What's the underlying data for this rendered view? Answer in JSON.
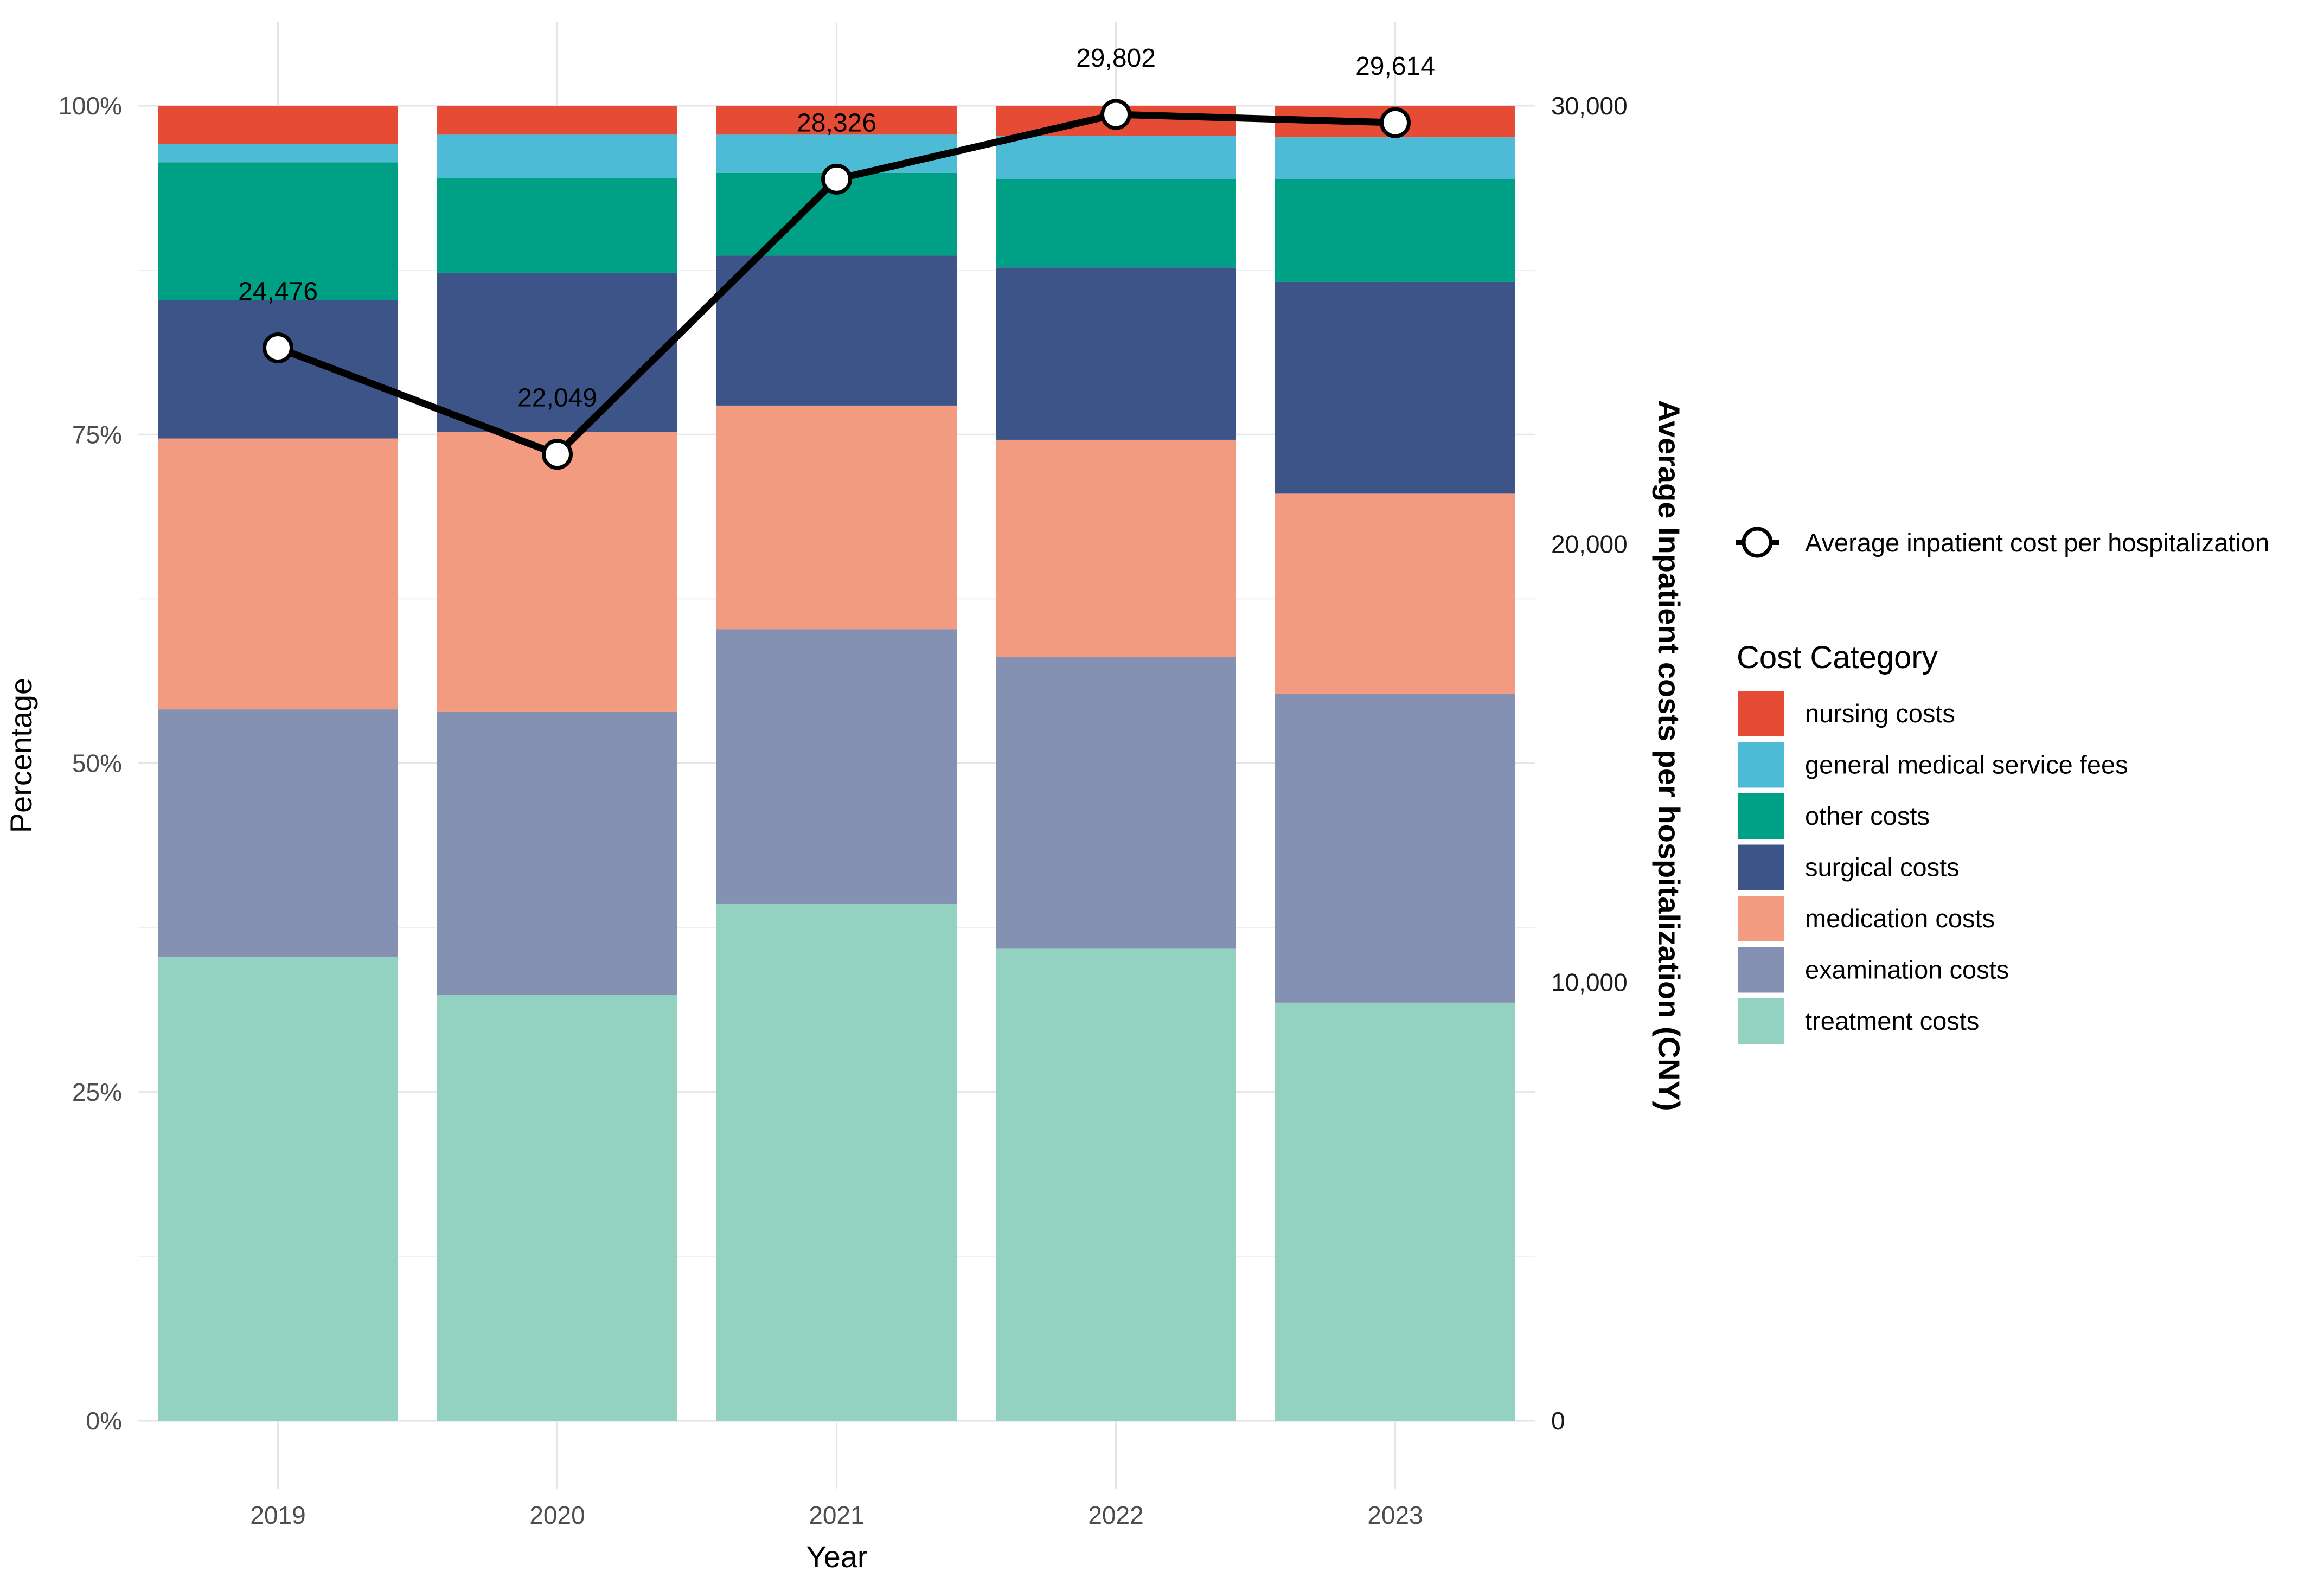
{
  "chart_data": {
    "type": "bar",
    "stacked": true,
    "categories": [
      "2019",
      "2020",
      "2021",
      "2022",
      "2023"
    ],
    "xlabel": "Year",
    "ylabel": "Percentage",
    "ylim": [
      0,
      1
    ],
    "y_ticks": [
      "0%",
      "25%",
      "50%",
      "75%",
      "100%"
    ],
    "y2label": "Average Inpatient costs per hospitalization (CNY)",
    "y2lim": [
      0,
      30000
    ],
    "y2_ticks": [
      "0",
      "10,000",
      "20,000",
      "30,000"
    ],
    "grid": true,
    "series": [
      {
        "name": "treatment costs",
        "color": "#93D1C0",
        "values": [
          35.3,
          32.4,
          39.3,
          35.9,
          31.8
        ]
      },
      {
        "name": "examination costs",
        "color": "#8591B3",
        "values": [
          18.8,
          21.5,
          20.9,
          22.2,
          23.5
        ]
      },
      {
        "name": "medication costs",
        "color": "#F29B80",
        "values": [
          20.6,
          21.3,
          17.0,
          16.5,
          15.2
        ]
      },
      {
        "name": "surgical costs",
        "color": "#3C5488",
        "values": [
          10.5,
          12.1,
          11.4,
          13.1,
          16.1
        ]
      },
      {
        "name": "other costs",
        "color": "#00A087",
        "values": [
          10.5,
          7.2,
          6.3,
          6.7,
          7.8
        ]
      },
      {
        "name": "general medical service fees",
        "color": "#4DBBD5",
        "values": [
          1.4,
          3.3,
          2.9,
          3.3,
          3.2
        ]
      },
      {
        "name": "nursing costs",
        "color": "#E64B35",
        "values": [
          2.9,
          2.2,
          2.2,
          2.3,
          2.4
        ]
      }
    ],
    "line": {
      "name": "Average inpatient cost per hospitalization",
      "axis": "right",
      "values": [
        24476,
        22049,
        28326,
        29802,
        29614
      ],
      "labels": [
        "24,476",
        "22,049",
        "28,326",
        "29,802",
        "29,614"
      ]
    },
    "legend": {
      "placement": "right",
      "line_entry": "Average inpatient cost per hospitalization",
      "title": "Cost Category",
      "items": [
        "nursing costs",
        "general medical service fees",
        "other costs",
        "surgical costs",
        "medication costs",
        "examination costs",
        "treatment costs"
      ]
    }
  }
}
